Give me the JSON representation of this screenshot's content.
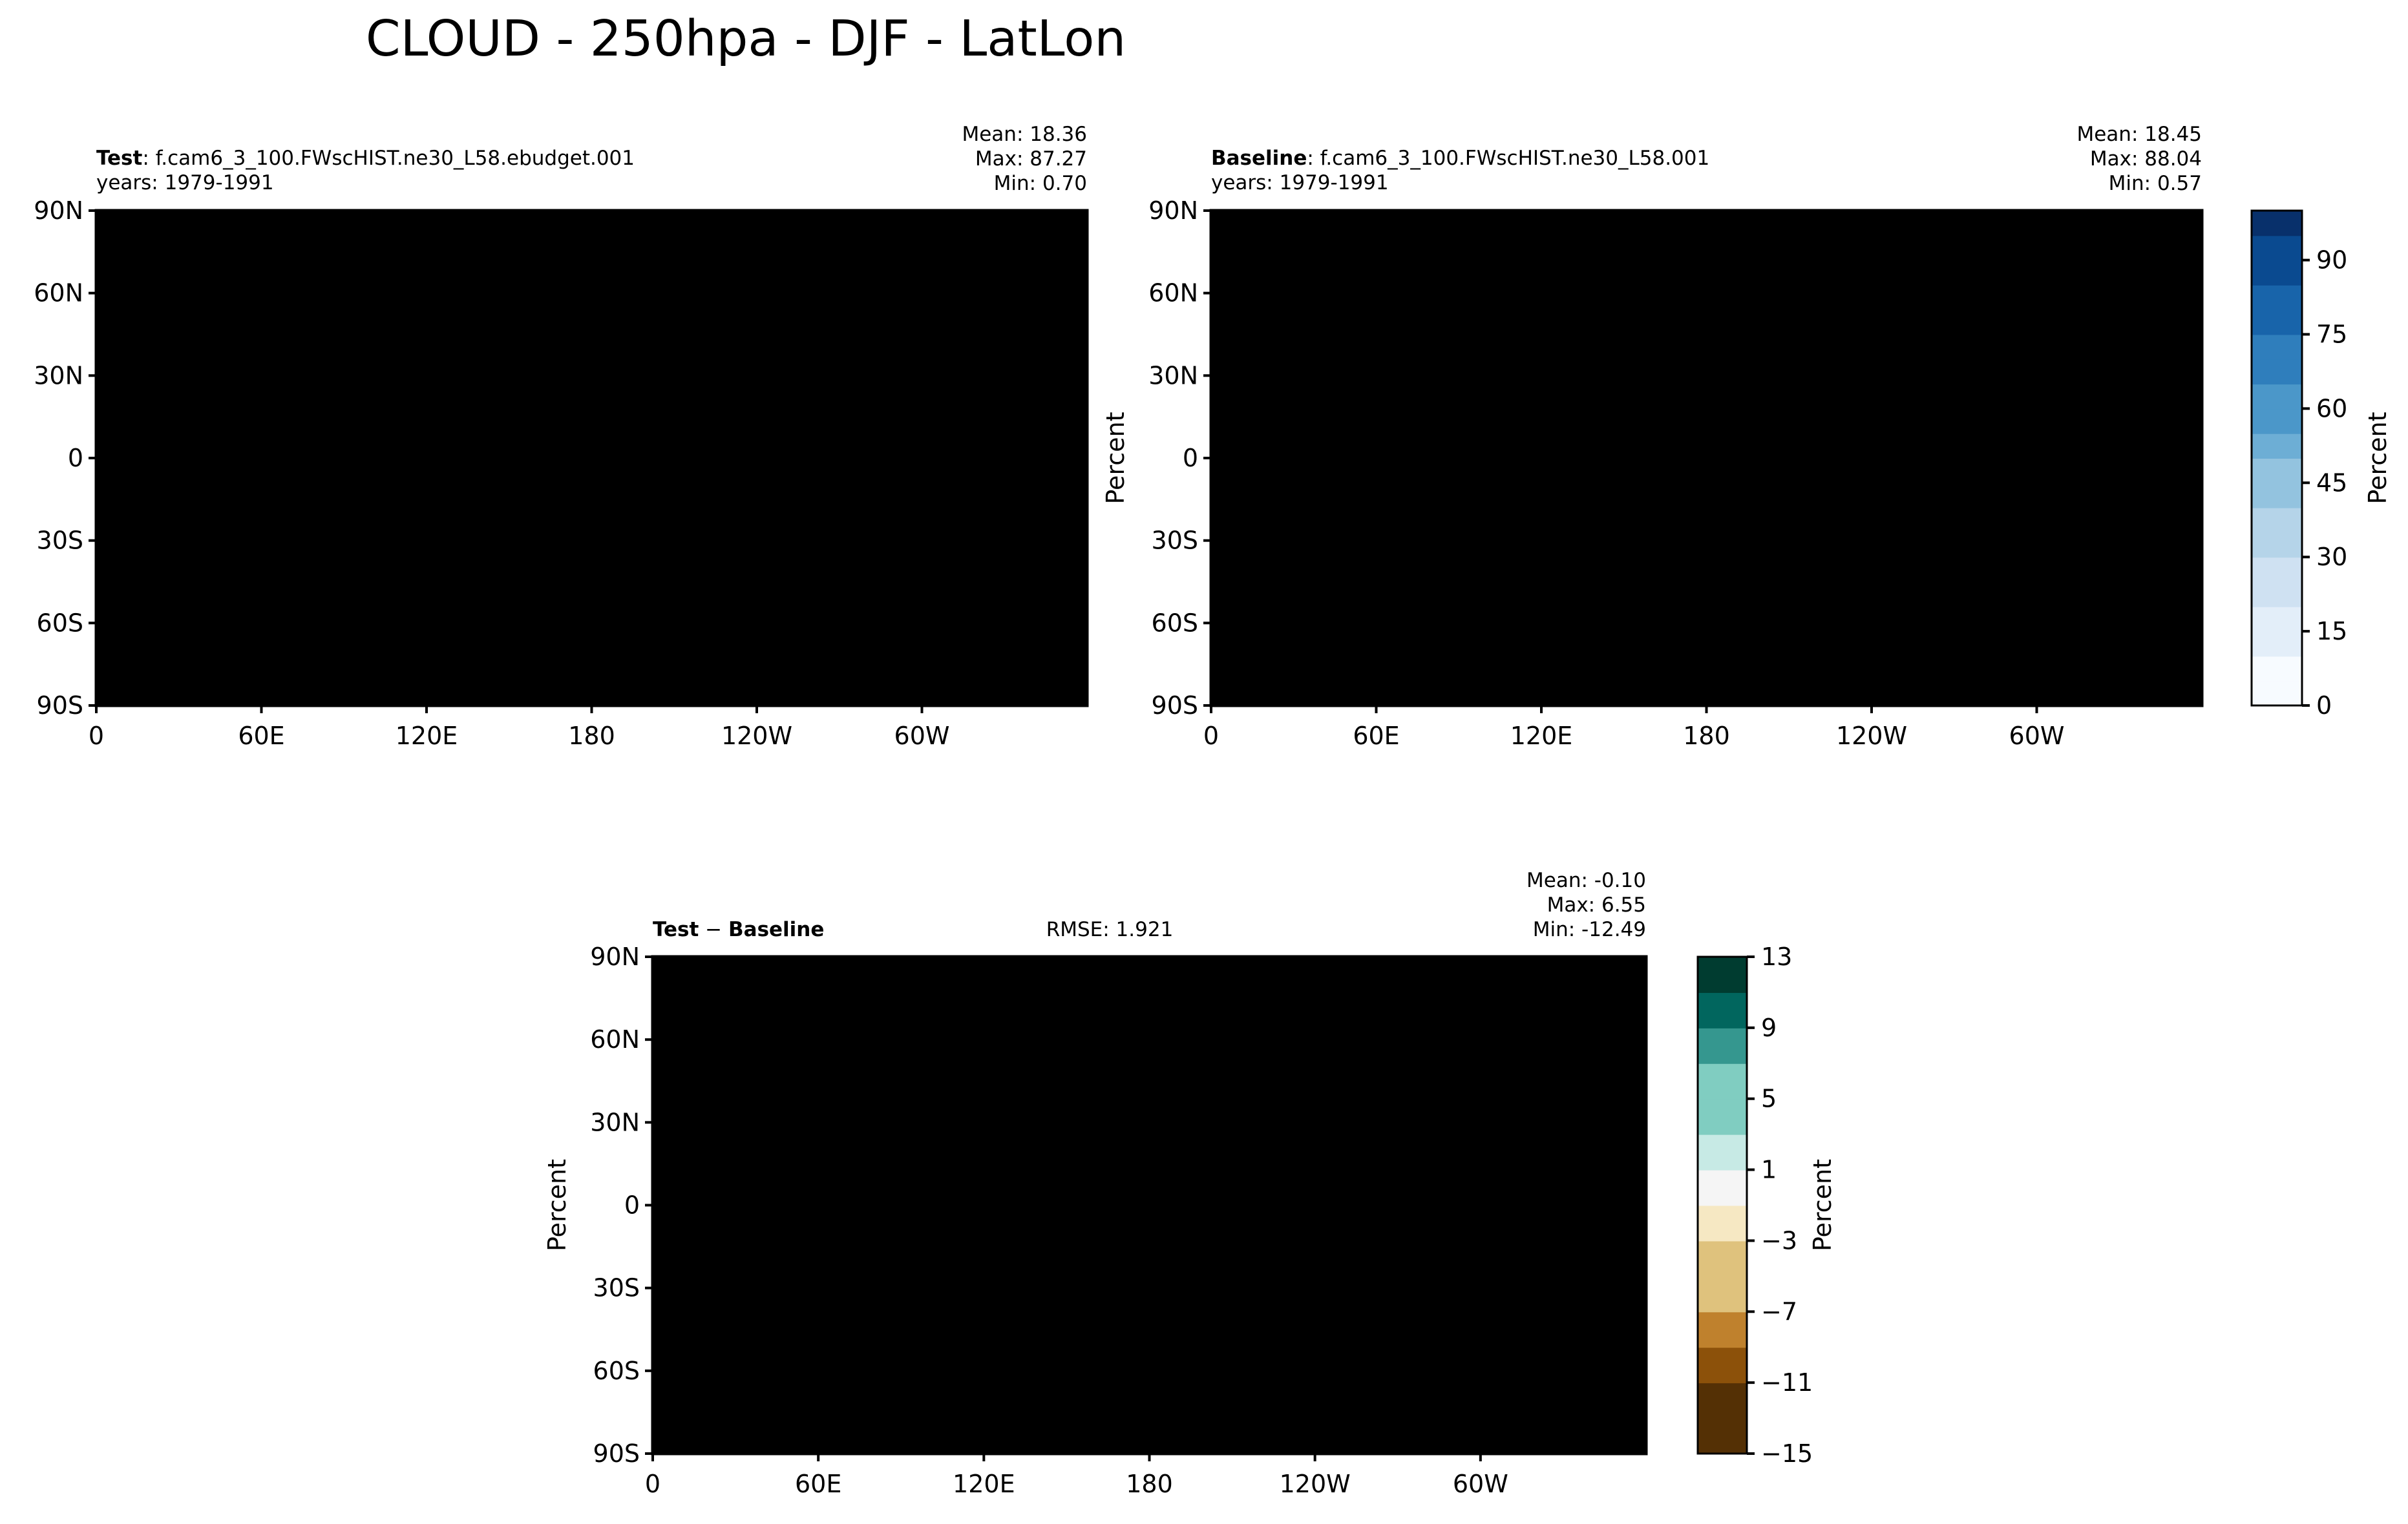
{
  "figure_title": "CLOUD - 250hpa - DJF - LatLon",
  "chart_data": [
    {
      "type": "heatmap",
      "panel": "test",
      "label_bold": "Test",
      "label_rest": ": f.cam6_3_100.FWscHIST.ne30_L58.ebudget.001",
      "years": "years: 1979-1991",
      "stats": {
        "mean": "Mean: 18.36",
        "max": "Max: 87.27",
        "min": "Min:  0.70"
      },
      "xlim": [
        0,
        360
      ],
      "ylim": [
        -90,
        90
      ],
      "x_ticks": [
        "0",
        "60E",
        "120E",
        "180",
        "120W",
        "60W"
      ],
      "y_ticks": [
        "90N",
        "60N",
        "30N",
        "0",
        "30S",
        "60S",
        "90S"
      ],
      "ylabel": ""
    },
    {
      "type": "heatmap",
      "panel": "baseline",
      "label_bold": "Baseline",
      "label_rest": ": f.cam6_3_100.FWscHIST.ne30_L58.001",
      "years": "years: 1979-1991",
      "stats": {
        "mean": "Mean: 18.45",
        "max": "Max: 88.04",
        "min": "Min:  0.57"
      },
      "xlim": [
        0,
        360
      ],
      "ylim": [
        -90,
        90
      ],
      "x_ticks": [
        "0",
        "60E",
        "120E",
        "180",
        "120W",
        "60W"
      ],
      "y_ticks": [
        "90N",
        "60N",
        "30N",
        "0",
        "30S",
        "60S",
        "90S"
      ],
      "ylabel": "Percent",
      "colorbar": {
        "label": "Percent",
        "ticks": [
          "0",
          "15",
          "30",
          "45",
          "60",
          "75",
          "90"
        ],
        "range": [
          0,
          100
        ]
      }
    },
    {
      "type": "heatmap",
      "panel": "difference",
      "label_bold1": "Test",
      "label_op": " − ",
      "label_bold2": "Baseline",
      "rmse": "RMSE: 1.921",
      "stats": {
        "mean": "Mean: -0.10",
        "max": "Max:  6.55",
        "min": "Min: -12.49"
      },
      "xlim": [
        0,
        360
      ],
      "ylim": [
        -90,
        90
      ],
      "x_ticks": [
        "0",
        "60E",
        "120E",
        "180",
        "120W",
        "60W"
      ],
      "y_ticks": [
        "90N",
        "60N",
        "30N",
        "0",
        "30S",
        "60S",
        "90S"
      ],
      "ylabel": "Percent",
      "colorbar": {
        "label": "Percent",
        "ticks": [
          "13",
          "9",
          "5",
          "1",
          "−3",
          "−7",
          "−11",
          "−15"
        ],
        "range": [
          -15,
          13
        ]
      }
    }
  ],
  "colors": {
    "seq": [
      "#f7fbff",
      "#e3eef9",
      "#cfe1f2",
      "#b5d4e9",
      "#93c3df",
      "#6daed5",
      "#4b97c9",
      "#2f7ebc",
      "#1864aa",
      "#0a4a90",
      "#08306b"
    ],
    "div": [
      "#003c30",
      "#01665e",
      "#35978f",
      "#80cdc1",
      "#c7eae5",
      "#f5f5f5",
      "#f6e8c3",
      "#dfc27d",
      "#bf812d",
      "#8c510a",
      "#543005"
    ]
  }
}
